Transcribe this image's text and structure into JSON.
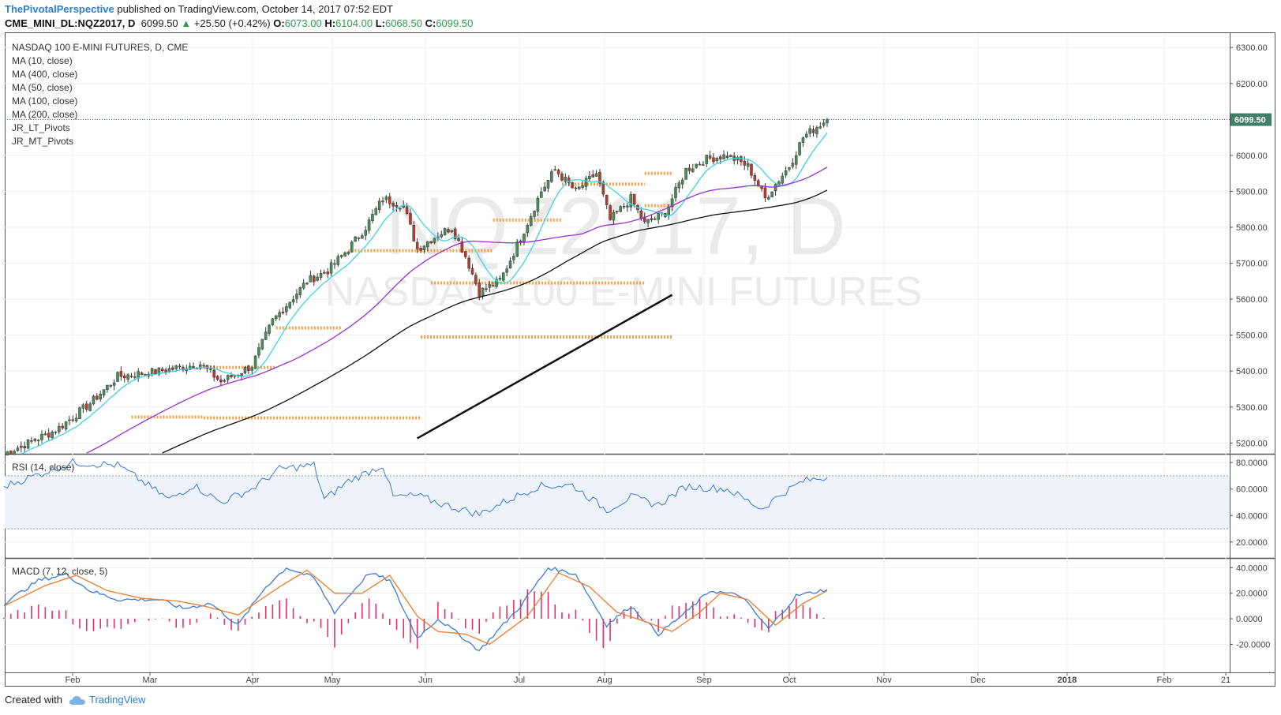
{
  "header": {
    "author": "ThePivotalPerspective",
    "published": "published on TradingView.com, October 14, 2017 07:52 EDT",
    "symbol": "CME_MINI_DL:NQZ2017, D",
    "last": "6099.50",
    "change": "+25.50 (+0.42%)",
    "open_label": "O:",
    "open": "6073.00",
    "high_label": "H:",
    "high": "6104.00",
    "low_label": "L:",
    "low": "6068.50",
    "close_label": "C:",
    "close": "6099.50"
  },
  "legend": [
    "NASDAQ 100 E-MINI FUTURES, D, CME",
    "MA (10, close)",
    "MA (400, close)",
    "MA (50, close)",
    "MA (100, close)",
    "MA (200, close)",
    "JR_LT_Pivots",
    "JR_MT_Pivots"
  ],
  "watermark": {
    "line1": "NQZ2017, D",
    "line2": "NASDAQ 100 E-MINI FUTURES"
  },
  "footer": {
    "created": "Created with",
    "brand": "TradingView"
  },
  "colors": {
    "up": "#4a8f5b",
    "down": "#c0392b",
    "ma10": "#3cd3e8",
    "ma50": "#9b30d0",
    "ma100": "#111111",
    "pivot": "#f5a04a",
    "rsi": "#3a7bd5",
    "macd": "#3a7bd5",
    "signal": "#f07a28",
    "hist": "#e0306f",
    "accent": "#2a7fd4"
  },
  "chart_data": [
    {
      "type": "candlestick",
      "title": "NASDAQ 100 E-MINI FUTURES, D, CME",
      "x_ticks": [
        "Feb",
        "Mar",
        "Apr",
        "May",
        "Jun",
        "Jul",
        "Aug",
        "Sep",
        "Oct",
        "Nov",
        "Dec",
        "2018",
        "Feb",
        "21"
      ],
      "y_ticks": [
        "6300.00",
        "6200.00",
        "6100.00",
        "6000.00",
        "5900.00",
        "5800.00",
        "5700.00",
        "5600.00",
        "5500.00",
        "5400.00",
        "5300.00",
        "5200.00"
      ],
      "ylim": [
        5170,
        6340
      ],
      "last_price_label": "6099.50",
      "anchors": [
        {
          "d": 0,
          "v": 5170
        },
        {
          "d": 15,
          "v": 5235
        },
        {
          "d": 25,
          "v": 5310
        },
        {
          "d": 33,
          "v": 5385
        },
        {
          "d": 45,
          "v": 5400
        },
        {
          "d": 57,
          "v": 5420
        },
        {
          "d": 63,
          "v": 5370
        },
        {
          "d": 72,
          "v": 5415
        },
        {
          "d": 78,
          "v": 5540
        },
        {
          "d": 88,
          "v": 5650
        },
        {
          "d": 94,
          "v": 5680
        },
        {
          "d": 100,
          "v": 5740
        },
        {
          "d": 105,
          "v": 5800
        },
        {
          "d": 110,
          "v": 5880
        },
        {
          "d": 116,
          "v": 5860
        },
        {
          "d": 120,
          "v": 5740
        },
        {
          "d": 126,
          "v": 5780
        },
        {
          "d": 130,
          "v": 5800
        },
        {
          "d": 134,
          "v": 5720
        },
        {
          "d": 138,
          "v": 5620
        },
        {
          "d": 144,
          "v": 5650
        },
        {
          "d": 150,
          "v": 5770
        },
        {
          "d": 156,
          "v": 5900
        },
        {
          "d": 160,
          "v": 5960
        },
        {
          "d": 166,
          "v": 5900
        },
        {
          "d": 172,
          "v": 5950
        },
        {
          "d": 176,
          "v": 5820
        },
        {
          "d": 182,
          "v": 5880
        },
        {
          "d": 186,
          "v": 5810
        },
        {
          "d": 192,
          "v": 5840
        },
        {
          "d": 198,
          "v": 5960
        },
        {
          "d": 204,
          "v": 5990
        },
        {
          "d": 210,
          "v": 6000
        },
        {
          "d": 216,
          "v": 5970
        },
        {
          "d": 221,
          "v": 5880
        },
        {
          "d": 224,
          "v": 5920
        },
        {
          "d": 228,
          "v": 5970
        },
        {
          "d": 232,
          "v": 6050
        },
        {
          "d": 236,
          "v": 6080
        },
        {
          "d": 239,
          "v": 6099.5
        }
      ],
      "moving_averages": [
        {
          "name": "MA (10, close)",
          "period": 10,
          "color": "#3cd3e8"
        },
        {
          "name": "MA (50, close)",
          "period": 50,
          "color": "#9b30d0"
        },
        {
          "name": "MA (100, close)",
          "period": 100,
          "color": "#111111"
        }
      ],
      "ma200_segment": {
        "x": [
          "Jun 28",
          "Oct 13"
        ],
        "y": [
          5213,
          5612
        ]
      },
      "pivots": [
        {
          "from": "Feb 28",
          "to": "Mar 31",
          "y": 5272
        },
        {
          "from": "Mar 31",
          "to": "Jun 30",
          "y": 5270
        },
        {
          "from": "Mar 31",
          "to": "Apr 28",
          "y": 5410
        },
        {
          "from": "Apr 28",
          "to": "May 28",
          "y": 5520
        },
        {
          "from": "May 31",
          "to": "Jul 28",
          "y": 5735
        },
        {
          "from": "Jul 02",
          "to": "Sep 30",
          "y": 5645
        },
        {
          "from": "Jun 30",
          "to": "Oct 13",
          "y": 5495
        },
        {
          "from": "Jul 28",
          "to": "Aug 28",
          "y": 5820
        },
        {
          "from": "Aug 28",
          "to": "Sep 30",
          "y": 5920
        },
        {
          "from": "Sep 30",
          "to": "Oct 13",
          "y": 5950
        },
        {
          "from": "Sep 30",
          "to": "Oct 13",
          "y": 5860
        }
      ]
    },
    {
      "type": "line",
      "title": "RSI (14, close)",
      "y_ticks": [
        "80.0000",
        "60.0000",
        "40.0000",
        "20.0000"
      ],
      "ylim": [
        8,
        86
      ],
      "band": [
        30,
        70
      ],
      "series": [
        {
          "name": "RSI (14, close)",
          "anchors": [
            {
              "d": 0,
              "v": 62
            },
            {
              "d": 20,
              "v": 80
            },
            {
              "d": 33,
              "v": 78
            },
            {
              "d": 40,
              "v": 66
            },
            {
              "d": 48,
              "v": 52
            },
            {
              "d": 55,
              "v": 63
            },
            {
              "d": 63,
              "v": 50
            },
            {
              "d": 72,
              "v": 60
            },
            {
              "d": 80,
              "v": 75
            },
            {
              "d": 90,
              "v": 78
            },
            {
              "d": 93,
              "v": 52
            },
            {
              "d": 100,
              "v": 66
            },
            {
              "d": 110,
              "v": 78
            },
            {
              "d": 113,
              "v": 54
            },
            {
              "d": 120,
              "v": 55
            },
            {
              "d": 128,
              "v": 48
            },
            {
              "d": 138,
              "v": 41
            },
            {
              "d": 145,
              "v": 50
            },
            {
              "d": 155,
              "v": 62
            },
            {
              "d": 165,
              "v": 63
            },
            {
              "d": 175,
              "v": 44
            },
            {
              "d": 182,
              "v": 54
            },
            {
              "d": 190,
              "v": 48
            },
            {
              "d": 198,
              "v": 62
            },
            {
              "d": 210,
              "v": 60
            },
            {
              "d": 220,
              "v": 45
            },
            {
              "d": 225,
              "v": 55
            },
            {
              "d": 232,
              "v": 66
            },
            {
              "d": 239,
              "v": 69
            }
          ]
        }
      ]
    },
    {
      "type": "line",
      "title": "MACD (7, 12, close, 5)",
      "y_ticks": [
        "40.0000",
        "20.0000",
        "0.0000",
        "-20.0000"
      ],
      "ylim": [
        -42,
        47
      ],
      "series": [
        {
          "name": "MACD",
          "anchors": [
            {
              "d": 0,
              "v": 12
            },
            {
              "d": 10,
              "v": 30
            },
            {
              "d": 18,
              "v": 35
            },
            {
              "d": 25,
              "v": 22
            },
            {
              "d": 33,
              "v": 15
            },
            {
              "d": 45,
              "v": 15
            },
            {
              "d": 52,
              "v": 8
            },
            {
              "d": 60,
              "v": 12
            },
            {
              "d": 68,
              "v": -5
            },
            {
              "d": 76,
              "v": 25
            },
            {
              "d": 82,
              "v": 40
            },
            {
              "d": 90,
              "v": 32
            },
            {
              "d": 96,
              "v": 5
            },
            {
              "d": 106,
              "v": 36
            },
            {
              "d": 112,
              "v": 30
            },
            {
              "d": 120,
              "v": -15
            },
            {
              "d": 126,
              "v": 0
            },
            {
              "d": 132,
              "v": -12
            },
            {
              "d": 138,
              "v": -25
            },
            {
              "d": 150,
              "v": 10
            },
            {
              "d": 158,
              "v": 40
            },
            {
              "d": 166,
              "v": 35
            },
            {
              "d": 175,
              "v": -5
            },
            {
              "d": 182,
              "v": 10
            },
            {
              "d": 190,
              "v": -12
            },
            {
              "d": 198,
              "v": 5
            },
            {
              "d": 205,
              "v": 22
            },
            {
              "d": 214,
              "v": 18
            },
            {
              "d": 222,
              "v": -8
            },
            {
              "d": 230,
              "v": 18
            },
            {
              "d": 239,
              "v": 23
            }
          ]
        },
        {
          "name": "Signal",
          "anchors": [
            {
              "d": 0,
              "v": 10
            },
            {
              "d": 12,
              "v": 26
            },
            {
              "d": 21,
              "v": 34
            },
            {
              "d": 30,
              "v": 22
            },
            {
              "d": 40,
              "v": 16
            },
            {
              "d": 50,
              "v": 14
            },
            {
              "d": 58,
              "v": 10
            },
            {
              "d": 68,
              "v": 3
            },
            {
              "d": 80,
              "v": 25
            },
            {
              "d": 88,
              "v": 38
            },
            {
              "d": 96,
              "v": 20
            },
            {
              "d": 104,
              "v": 20
            },
            {
              "d": 112,
              "v": 34
            },
            {
              "d": 120,
              "v": 2
            },
            {
              "d": 126,
              "v": -10
            },
            {
              "d": 134,
              "v": -12
            },
            {
              "d": 141,
              "v": -20
            },
            {
              "d": 152,
              "v": 2
            },
            {
              "d": 161,
              "v": 36
            },
            {
              "d": 170,
              "v": 25
            },
            {
              "d": 178,
              "v": 5
            },
            {
              "d": 186,
              "v": -2
            },
            {
              "d": 194,
              "v": -10
            },
            {
              "d": 202,
              "v": 5
            },
            {
              "d": 208,
              "v": 20
            },
            {
              "d": 216,
              "v": 15
            },
            {
              "d": 224,
              "v": -5
            },
            {
              "d": 232,
              "v": 12
            },
            {
              "d": 239,
              "v": 22
            }
          ]
        }
      ]
    }
  ]
}
